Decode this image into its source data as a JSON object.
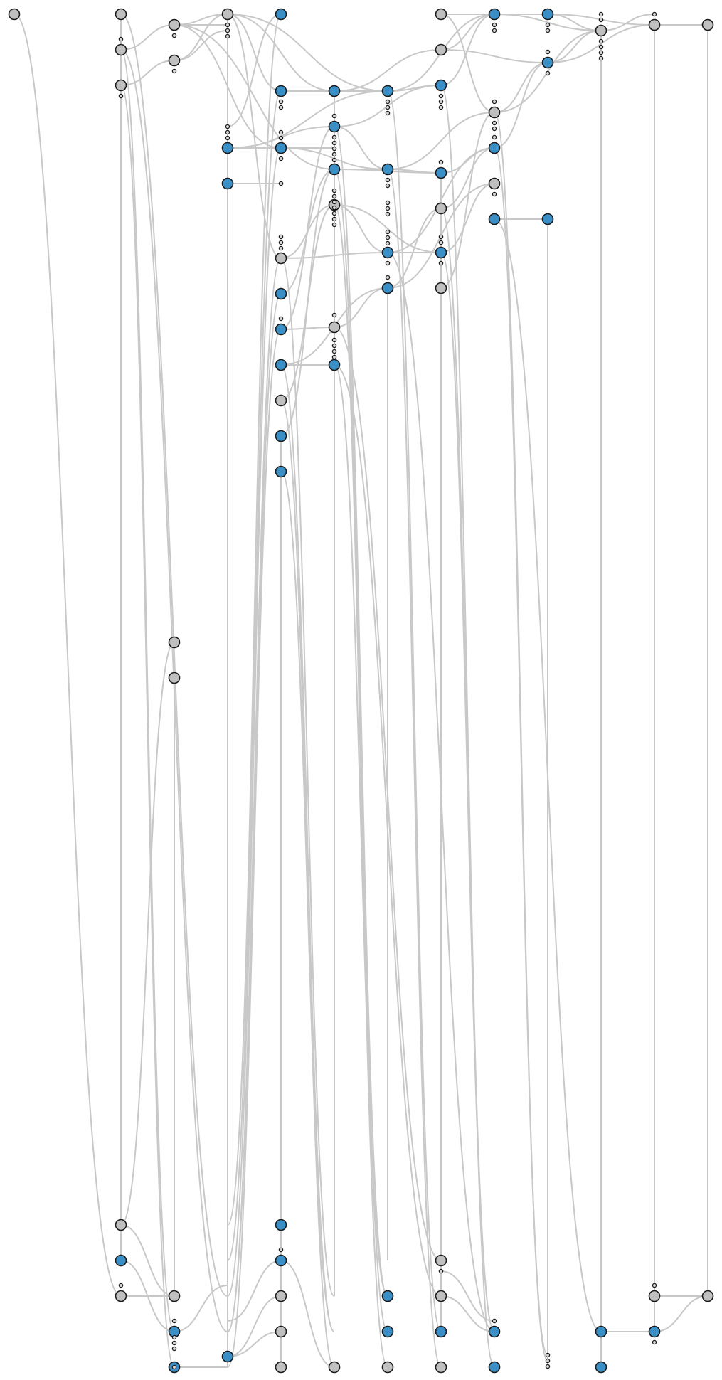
{
  "colors": {
    "background": "#ffffff",
    "edge": "#c8c8c8",
    "node_blue": "#3a8fc6",
    "node_gray": "#c0c0c0",
    "node_stroke": "#1a1a1a",
    "dot_fill": "#d8d8d8"
  },
  "legend": [],
  "labels": []
}
